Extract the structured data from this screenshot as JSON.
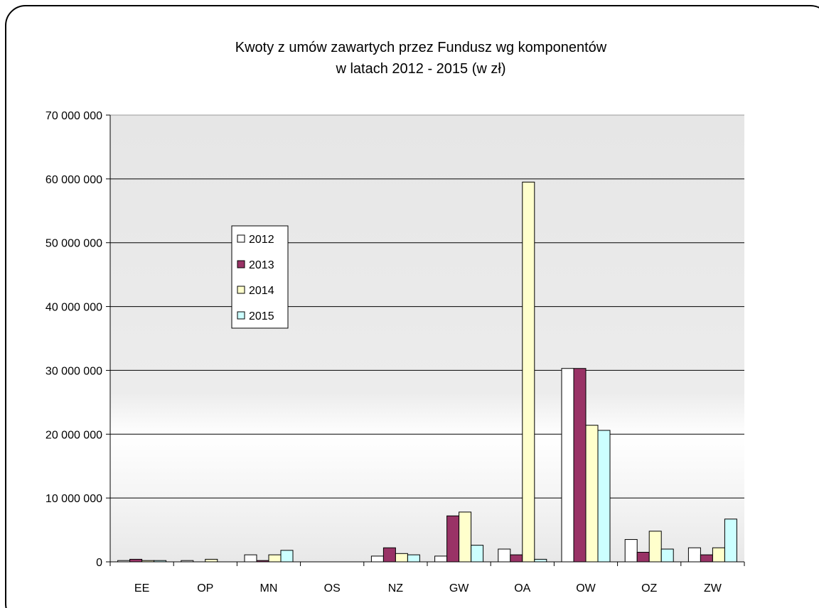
{
  "chart_data": {
    "type": "bar",
    "title": "Kwoty z umów zawartych przez Fundusz wg komponentów",
    "subtitle": "w latach 2012 - 2015 (w zł)",
    "categories": [
      "EE",
      "OP",
      "MN",
      "OS",
      "NZ",
      "GW",
      "OA",
      "OW",
      "OZ",
      "ZW"
    ],
    "series": [
      {
        "name": "2012",
        "color": "#ffffff",
        "values": [
          200000,
          200000,
          1100000,
          0,
          900000,
          900000,
          2000000,
          30300000,
          3500000,
          2200000
        ]
      },
      {
        "name": "2013",
        "color": "#993366",
        "values": [
          400000,
          0,
          200000,
          0,
          2200000,
          7200000,
          1100000,
          30300000,
          1500000,
          1100000
        ]
      },
      {
        "name": "2014",
        "color": "#ffffcc",
        "values": [
          200000,
          400000,
          1100000,
          0,
          1300000,
          7800000,
          59500000,
          21400000,
          4800000,
          2200000
        ]
      },
      {
        "name": "2015",
        "color": "#ccffff",
        "values": [
          200000,
          0,
          1800000,
          0,
          1100000,
          2600000,
          400000,
          20600000,
          2000000,
          6700000
        ]
      }
    ],
    "ylim": [
      0,
      70000000
    ],
    "yticks": [
      {
        "value": 0,
        "label": "0"
      },
      {
        "value": 10000000,
        "label": "10 000 000"
      },
      {
        "value": 20000000,
        "label": "20 000 000"
      },
      {
        "value": 30000000,
        "label": "30 000 000"
      },
      {
        "value": 40000000,
        "label": "40 000 000"
      },
      {
        "value": 50000000,
        "label": "50 000 000"
      },
      {
        "value": 60000000,
        "label": "60 000 000"
      },
      {
        "value": 70000000,
        "label": "70 000 000"
      }
    ],
    "grid": true,
    "legend": "left"
  }
}
